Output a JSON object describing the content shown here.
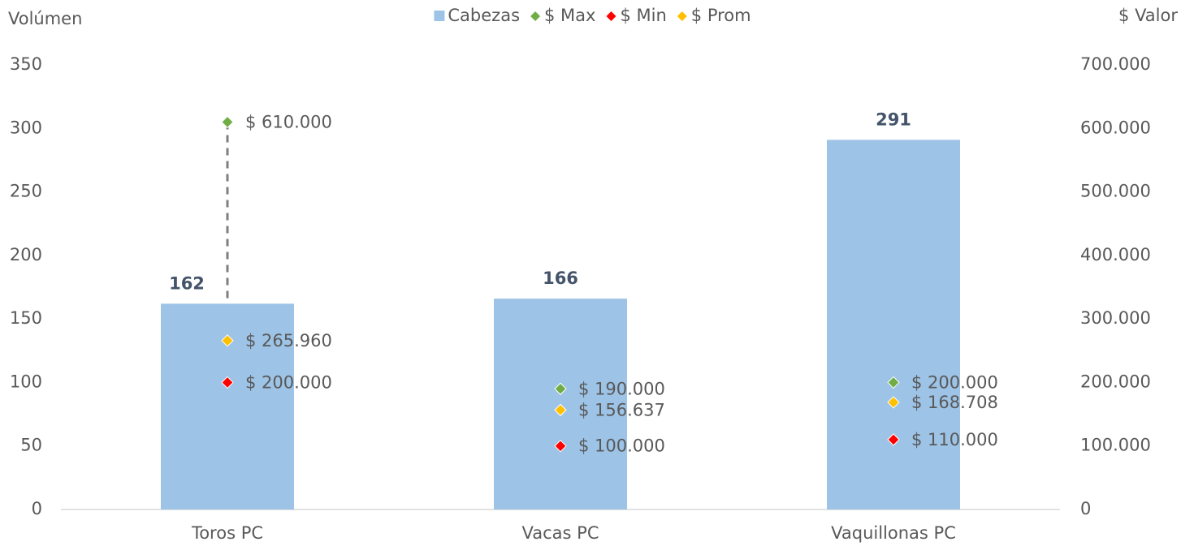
{
  "chart_data": {
    "type": "combo",
    "categories": [
      "Toros PC",
      "Vacas PC",
      "Vaquillonas PC"
    ],
    "ylabel": "Volúmen",
    "y2label": "$ Valor",
    "ylim": [
      0,
      350
    ],
    "yticks": [
      0,
      50,
      100,
      150,
      200,
      250,
      300,
      350
    ],
    "y2lim": [
      0,
      700000
    ],
    "y2ticks": [
      0,
      {
        "value": 100000,
        "label": "100.000"
      },
      {
        "value": 200000,
        "label": "200.000"
      },
      {
        "value": 300000,
        "label": "300.000"
      },
      {
        "value": 400000,
        "label": "400.000"
      },
      {
        "value": 500000,
        "label": "500.000"
      },
      {
        "value": 600000,
        "label": "600.000"
      },
      {
        "value": 700000,
        "label": "700.000"
      }
    ],
    "grid": false,
    "legend": "top",
    "series": [
      {
        "name": "Cabezas",
        "type": "bar",
        "axis": "y",
        "color": "#9dc3e6",
        "values": [
          162,
          166,
          291
        ]
      },
      {
        "name": "$ Max",
        "type": "scatter",
        "axis": "y2",
        "color": "#70ad47",
        "values": [
          610000,
          190000,
          200000
        ],
        "value_labels": [
          "$ 610.000",
          "$ 190.000",
          "$ 200.000"
        ]
      },
      {
        "name": "$ Min",
        "type": "scatter",
        "axis": "y2",
        "color": "#ff0000",
        "values": [
          200000,
          100000,
          110000
        ],
        "value_labels": [
          "$ 200.000",
          "$ 100.000",
          "$ 110.000"
        ]
      },
      {
        "name": "$ Prom",
        "type": "scatter",
        "axis": "y2",
        "color": "#ffc000",
        "values": [
          265960,
          156637,
          168708
        ],
        "value_labels": [
          "$ 265.960",
          "$ 156.637",
          "$ 168.708"
        ]
      }
    ]
  }
}
